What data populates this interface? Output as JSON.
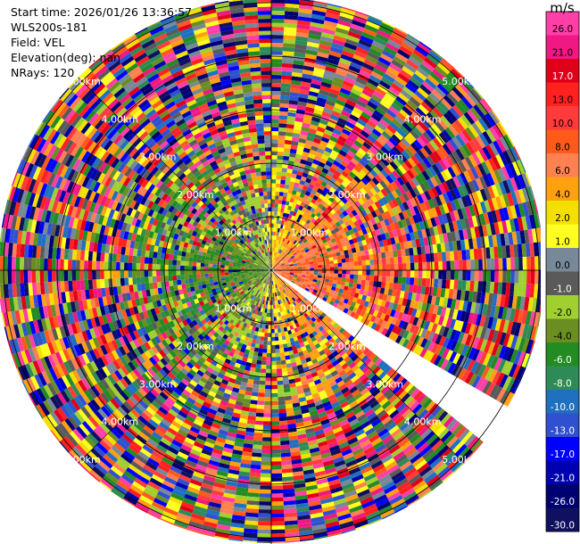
{
  "info": {
    "start_time": "Start time: 2026/01/26 13:36:57",
    "instrument": "WLS200s-181",
    "field": "Field: VEL",
    "elevation": "Elevation(deg): nan",
    "nrays": "NRays: 120"
  },
  "colorbar": {
    "unit": "m/s",
    "ticks": [
      "26.0",
      "21.0",
      "17.0",
      "13.0",
      "10.0",
      "8.0",
      "6.0",
      "4.0",
      "2.0",
      "1.0",
      "0.0",
      "-1.0",
      "-2.0",
      "-4.0",
      "-6.0",
      "-8.0",
      "-10.0",
      "-13.0",
      "-17.0",
      "-21.0",
      "-26.0",
      "-30.0"
    ],
    "colors": [
      "#ff3fa8",
      "#f01883",
      "#e0001a",
      "#ff2020",
      "#ff3b3b",
      "#ff5a1a",
      "#ff8050",
      "#ffa010",
      "#f4e000",
      "#ffff20",
      "#778899",
      "#5a5a5a",
      "#a0d030",
      "#6b8e23",
      "#228b22",
      "#2e8b57",
      "#2070c0",
      "#3050d0",
      "#0000ff",
      "#0000b0",
      "#000070",
      "#101060"
    ]
  },
  "chart_data": {
    "type": "heatmap",
    "projection": "polar (PPI)",
    "field": "VEL",
    "units": "m/s",
    "color_range": [
      -30.0,
      26.0
    ],
    "nrays": 120,
    "range_rings_km": [
      1,
      2,
      3,
      4,
      5
    ],
    "range_labels": [
      "1.00km",
      "2.00km",
      "3.00km",
      "4.00km",
      "5.00km"
    ],
    "missing_sector_deg": [
      120,
      129
    ]
  }
}
